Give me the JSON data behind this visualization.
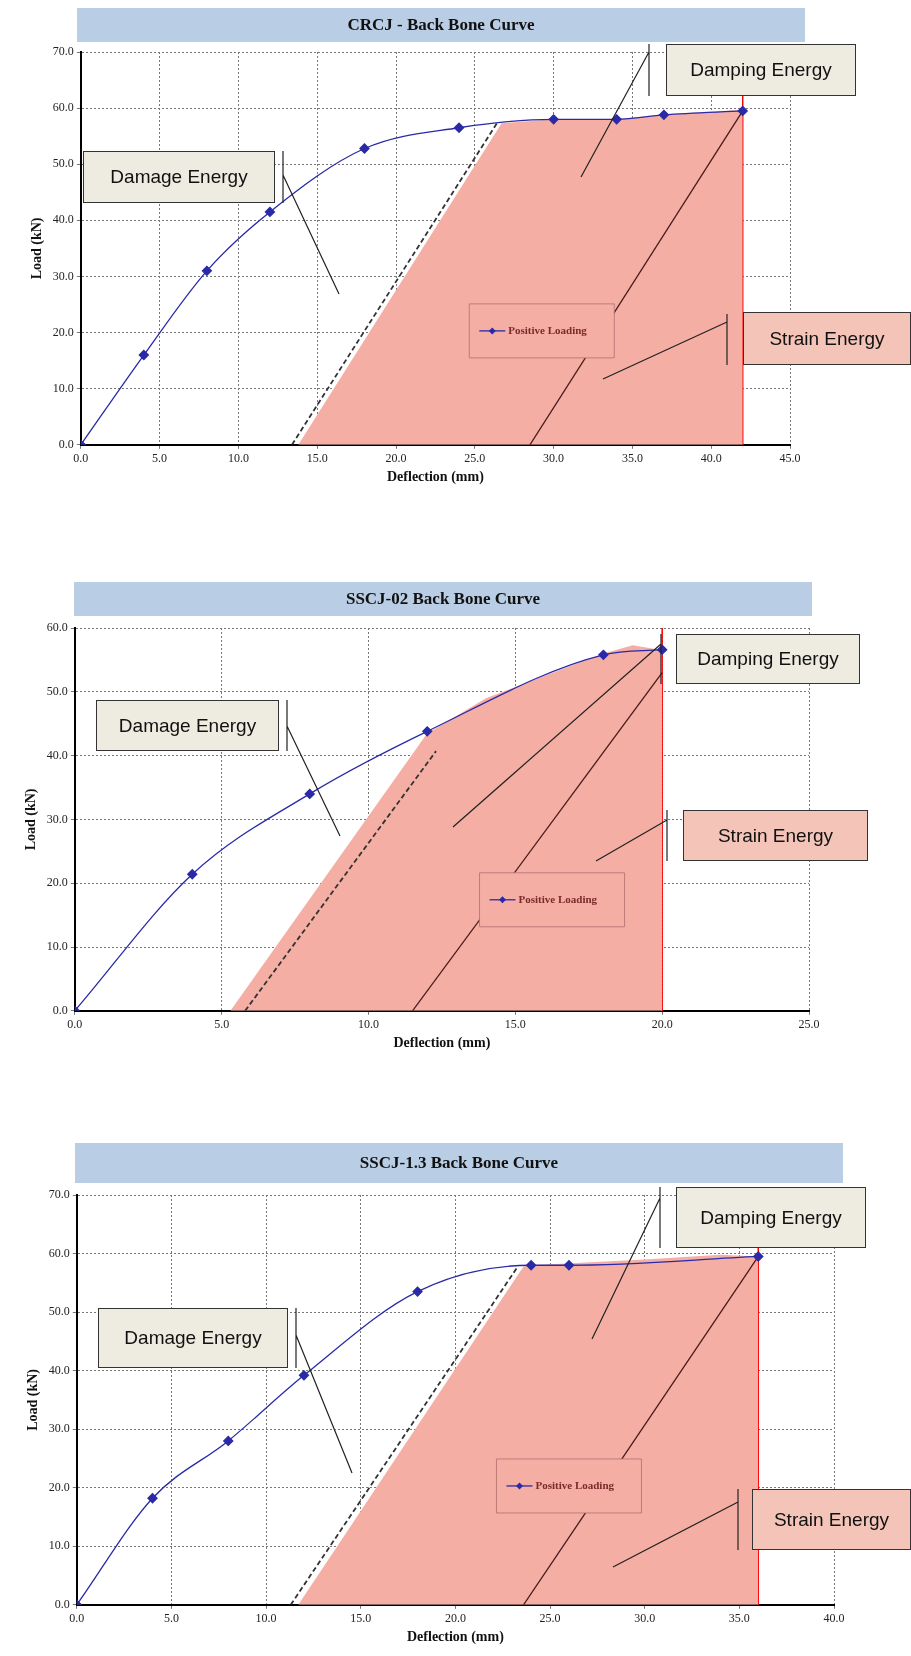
{
  "chart_data": [
    {
      "type": "line",
      "title": "CRCJ - Back Bone Curve",
      "xlabel": "Deflection (mm)",
      "ylabel": "Load (kN)",
      "xlim": [
        0,
        45
      ],
      "ylim": [
        0,
        70
      ],
      "xticks": [
        {
          "value": 0,
          "label": "0.0"
        },
        {
          "value": 5,
          "label": "5.0"
        },
        {
          "value": 10,
          "label": "10.0"
        },
        {
          "value": 15,
          "label": "15.0"
        },
        {
          "value": 20,
          "label": "20.0"
        },
        {
          "value": 25,
          "label": "25.0"
        },
        {
          "value": 30,
          "label": "30.0"
        },
        {
          "value": 35,
          "label": "35.0"
        },
        {
          "value": 40,
          "label": "40.0"
        },
        {
          "value": 45,
          "label": "45.0"
        }
      ],
      "yticks": [
        {
          "value": 0,
          "label": "0.0"
        },
        {
          "value": 10,
          "label": "10.0"
        },
        {
          "value": 20,
          "label": "20.0"
        },
        {
          "value": 30,
          "label": "30.0"
        },
        {
          "value": 40,
          "label": "40.0"
        },
        {
          "value": 50,
          "label": "50.0"
        },
        {
          "value": 60,
          "label": "60.0"
        },
        {
          "value": 70,
          "label": "70.0"
        }
      ],
      "grid": true,
      "legend": "bottom",
      "series": [
        {
          "type": "area",
          "color": "#f4aea4",
          "x": [
            13.8,
            26.7,
            30,
            34,
            37,
            42,
            42
          ],
          "values": [
            0,
            57.3,
            58,
            58,
            58.8,
            59.7,
            0
          ]
        },
        {
          "type": "line",
          "line_style": "dashed",
          "color": "#333333",
          "x": [
            13.4,
            26.4
          ],
          "values": [
            0,
            57.3
          ]
        },
        {
          "type": "line",
          "color": "#4a1a1a",
          "x": [
            28.5,
            42
          ],
          "values": [
            0,
            59.5
          ]
        },
        {
          "type": "line",
          "name": "Positive Loading",
          "marker": "diamond",
          "color": "#2a2aa8",
          "x": [
            0,
            4,
            8,
            12,
            18,
            24,
            30,
            34,
            37,
            42
          ],
          "values": [
            0,
            16,
            31,
            41.5,
            52.8,
            56.5,
            58,
            58,
            58.8,
            59.5
          ]
        }
      ],
      "ref_lines": [
        {
          "axis": "x",
          "value": 42,
          "color": "#ff0000"
        }
      ],
      "annotations": [
        "Damage Energy",
        "Damping Energy",
        "Strain Energy"
      ]
    },
    {
      "type": "line",
      "title": "SSCJ-02  Back Bone Curve",
      "xlabel": "Deflection (mm)",
      "ylabel": "Load (kN)",
      "xlim": [
        0,
        25
      ],
      "ylim": [
        0,
        60
      ],
      "xticks": [
        {
          "value": 0,
          "label": "0.0"
        },
        {
          "value": 5,
          "label": "5.0"
        },
        {
          "value": 10,
          "label": "10.0"
        },
        {
          "value": 15,
          "label": "15.0"
        },
        {
          "value": 20,
          "label": "20.0"
        },
        {
          "value": 25,
          "label": "25.0"
        }
      ],
      "yticks": [
        {
          "value": 0,
          "label": "0.0"
        },
        {
          "value": 10,
          "label": "10.0"
        },
        {
          "value": 20,
          "label": "20.0"
        },
        {
          "value": 30,
          "label": "30.0"
        },
        {
          "value": 40,
          "label": "40.0"
        },
        {
          "value": 50,
          "label": "50.0"
        },
        {
          "value": 60,
          "label": "60.0"
        }
      ],
      "grid": true,
      "legend": "bottom",
      "series": [
        {
          "type": "area",
          "color": "#f4aea4",
          "x": [
            5.3,
            12,
            14,
            16,
            18,
            19,
            20,
            20
          ],
          "values": [
            0,
            43.5,
            49,
            52.5,
            56,
            57.3,
            56.5,
            0
          ]
        },
        {
          "type": "line",
          "line_style": "dashed",
          "color": "#333333",
          "x": [
            5.8,
            12.3
          ],
          "values": [
            0,
            40.7
          ]
        },
        {
          "type": "line",
          "color": "#4a1a1a",
          "x": [
            11.5,
            20
          ],
          "values": [
            0,
            53
          ]
        },
        {
          "type": "line",
          "name": "Positive Loading",
          "marker": "diamond",
          "color": "#2a2aa8",
          "x": [
            0,
            4,
            8,
            12,
            18,
            20
          ],
          "values": [
            0,
            21.4,
            34,
            43.8,
            55.8,
            56.6
          ]
        }
      ],
      "ref_lines": [
        {
          "axis": "x",
          "value": 20,
          "color": "#ff0000"
        }
      ],
      "annotations": [
        "Damage Energy",
        "Damping Energy",
        "Strain Energy"
      ]
    },
    {
      "type": "line",
      "title": "SSCJ-1.3  Back Bone Curve",
      "xlabel": "Deflection (mm)",
      "ylabel": "Load (kN)",
      "xlim": [
        0,
        40
      ],
      "ylim": [
        0,
        70
      ],
      "xticks": [
        {
          "value": 0,
          "label": "0.0"
        },
        {
          "value": 5,
          "label": "5.0"
        },
        {
          "value": 10,
          "label": "10.0"
        },
        {
          "value": 15,
          "label": "15.0"
        },
        {
          "value": 20,
          "label": "20.0"
        },
        {
          "value": 25,
          "label": "25.0"
        },
        {
          "value": 30,
          "label": "30.0"
        },
        {
          "value": 35,
          "label": "35.0"
        },
        {
          "value": 40,
          "label": "40.0"
        }
      ],
      "yticks": [
        {
          "value": 0,
          "label": "0.0"
        },
        {
          "value": 10,
          "label": "10.0"
        },
        {
          "value": 20,
          "label": "20.0"
        },
        {
          "value": 30,
          "label": "30.0"
        },
        {
          "value": 40,
          "label": "40.0"
        },
        {
          "value": 50,
          "label": "50.0"
        },
        {
          "value": 60,
          "label": "60.0"
        },
        {
          "value": 70,
          "label": "70.0"
        }
      ],
      "grid": true,
      "legend": "bottom",
      "series": [
        {
          "type": "area",
          "color": "#f4aea4",
          "x": [
            11.7,
            23.6,
            24,
            30,
            34,
            36,
            36
          ],
          "values": [
            0,
            57.8,
            58,
            59,
            59.8,
            59.5,
            0
          ]
        },
        {
          "type": "line",
          "line_style": "dashed",
          "color": "#333333",
          "x": [
            11.3,
            23.3
          ],
          "values": [
            0,
            57.8
          ]
        },
        {
          "type": "line",
          "color": "#4a1a1a",
          "x": [
            23.6,
            36
          ],
          "values": [
            0,
            59.5
          ]
        },
        {
          "type": "line",
          "name": "Positive Loading",
          "marker": "diamond",
          "color": "#2a2aa8",
          "x": [
            0,
            4,
            8,
            12,
            18,
            24,
            26,
            36
          ],
          "values": [
            0,
            18.2,
            28,
            39.2,
            53.5,
            58,
            58,
            59.5
          ]
        }
      ],
      "ref_lines": [
        {
          "axis": "x",
          "value": 36,
          "color": "#ff0000"
        }
      ],
      "annotations": [
        "Damage Energy",
        "Damping Energy",
        "Strain Energy"
      ]
    }
  ]
}
